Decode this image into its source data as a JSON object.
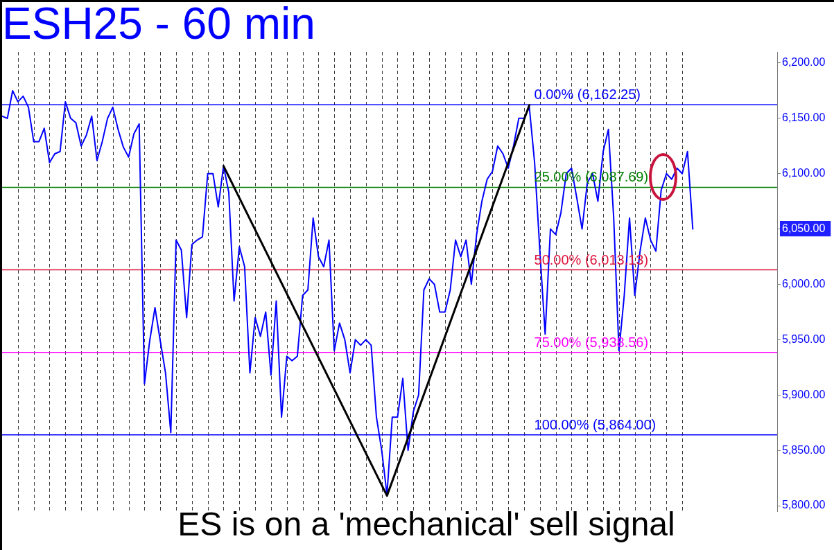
{
  "chart_data": {
    "type": "line",
    "title": "ESH25 - 60 min",
    "categories": [
      null,
      null,
      null,
      null,
      null,
      null,
      null,
      null,
      null,
      null,
      null,
      null,
      null,
      null,
      null,
      null,
      null,
      null,
      null,
      null,
      null,
      null,
      null,
      null,
      null,
      null,
      null,
      null,
      null,
      null,
      null,
      null,
      null,
      null,
      null,
      null,
      null,
      null,
      null,
      null,
      null,
      null,
      null,
      null,
      null,
      null,
      null,
      null,
      null,
      null,
      null,
      null,
      null,
      null,
      null,
      null,
      null,
      null,
      null,
      null,
      null,
      null,
      null,
      null,
      null,
      null,
      null,
      null,
      null,
      null,
      null,
      null,
      null,
      null,
      null,
      null,
      null,
      null,
      null,
      null,
      null,
      null,
      null,
      null,
      null,
      null,
      null,
      null,
      null,
      null,
      null,
      null,
      null,
      null,
      null,
      null,
      null,
      null,
      null,
      null,
      null,
      null,
      null,
      null,
      null,
      null,
      null,
      null,
      null,
      null,
      null,
      null,
      null,
      null,
      null,
      null,
      null,
      null,
      null,
      null,
      null,
      null,
      null,
      null,
      null,
      null,
      null,
      null,
      null,
      null,
      null,
      null,
      null,
      null,
      null,
      null,
      null,
      null,
      null,
      null,
      null,
      null,
      null,
      null,
      null,
      null,
      null,
      null
    ],
    "series": [
      {
        "color": "#0000ff",
        "values": [
          6152,
          6150,
          6175,
          6165,
          6170,
          6160,
          6129,
          6129,
          6141,
          6110,
          6118,
          6120,
          6165,
          6150,
          6146,
          6125,
          6135,
          6152,
          6112,
          6129,
          6150,
          6160,
          6140,
          6124,
          6115,
          6136,
          6145,
          5910,
          5949,
          5979,
          5949,
          5920,
          5866,
          6040,
          6031,
          5970,
          6036,
          6040,
          6043,
          6100,
          6100,
          6070,
          6107,
          6083,
          5985,
          6034,
          6016,
          5920,
          5970,
          5953,
          5975,
          5918,
          5985,
          5880,
          5935,
          5931,
          5935,
          5990,
          5995,
          6060,
          6025,
          6016,
          6040,
          5940,
          5965,
          5950,
          5920,
          5950,
          5945,
          5950,
          5945,
          5880,
          5850,
          5810,
          5880,
          5880,
          5915,
          5850,
          5885,
          5900,
          5995,
          6005,
          6000,
          5975,
          5975,
          5995,
          6040,
          6025,
          6040,
          6000,
          6045,
          6075,
          6095,
          6102,
          6125,
          6118,
          6105,
          6125,
          6150,
          6150,
          6160,
          6110,
          6030,
          5955,
          6050,
          6045,
          6065,
          6100,
          6105,
          6078,
          6050,
          6092,
          6100,
          6075,
          6120,
          6140,
          6060,
          5940,
          5990,
          6060,
          5990,
          6030,
          6060,
          6040,
          6030,
          6085,
          6100,
          6095,
          6105,
          6100,
          6120,
          6050,
          null,
          null,
          null,
          null,
          null,
          null,
          null,
          null,
          null,
          null,
          null,
          null,
          null,
          null,
          null,
          null
        ]
      },
      {
        "type": "line",
        "color": "#000000",
        "values": [
          null,
          null,
          null,
          null,
          null,
          null,
          null,
          null,
          null,
          null,
          null,
          null,
          null,
          null,
          null,
          null,
          null,
          null,
          null,
          null,
          null,
          null,
          null,
          null,
          null,
          null,
          null,
          null,
          null,
          null,
          null,
          null,
          null,
          null,
          null,
          null,
          null,
          null,
          null,
          null,
          null,
          null,
          6107,
          null,
          null,
          null,
          null,
          null,
          null,
          null,
          null,
          null,
          null,
          null,
          null,
          null,
          null,
          null,
          null,
          null,
          null,
          null,
          null,
          null,
          null,
          null,
          null,
          null,
          null,
          null,
          null,
          null,
          null,
          5809,
          null,
          null,
          null,
          null,
          null,
          null,
          null,
          null,
          null,
          null,
          null,
          null,
          null,
          null,
          null,
          null,
          null,
          null,
          null,
          null,
          null,
          null,
          null,
          null,
          null,
          null,
          6162,
          null,
          null,
          null,
          null,
          null,
          null,
          null,
          null,
          null,
          null,
          null,
          null,
          null,
          null,
          null,
          null,
          null,
          null,
          null,
          null,
          null,
          null,
          null,
          null,
          null,
          null,
          null,
          null,
          null,
          null,
          null,
          null,
          null,
          null,
          null,
          null,
          null,
          null,
          null,
          null,
          null,
          null,
          null,
          null,
          null,
          null,
          null
        ]
      }
    ],
    "ylim": [
      5795,
      6210
    ],
    "yticks": [
      {
        "value": 5800,
        "label": "5,800.00"
      },
      {
        "value": 5850,
        "label": "5,850.00"
      },
      {
        "value": 5900,
        "label": "5,900.00"
      },
      {
        "value": 5950,
        "label": "5,950.00"
      },
      {
        "value": 6000,
        "label": "6,000.00"
      },
      {
        "value": 6050,
        "label": "6,050.00"
      },
      {
        "value": 6100,
        "label": "6,100.00"
      },
      {
        "value": 6150,
        "label": "6,150.00"
      },
      {
        "value": 6200,
        "label": "6,200.00"
      }
    ],
    "grid": "x",
    "marker": "none",
    "ref_lines": [
      {
        "axis": "y",
        "value": 6162.25,
        "label": "0.00% (6,162.25)",
        "color": "#0000ff"
      },
      {
        "axis": "y",
        "value": 6087.69,
        "label": "25.00% (6,087.69)",
        "color": "#008000"
      },
      {
        "axis": "y",
        "value": 6013.13,
        "label": "50.00% (6,013.13)",
        "color": "#dc143c"
      },
      {
        "axis": "y",
        "value": 5938.56,
        "label": "75.00% (5,938.56)",
        "color": "#ff00ff"
      },
      {
        "axis": "y",
        "value": 5864.0,
        "label": "100.00% (5,864.00)",
        "color": "#0000ff"
      }
    ],
    "annotations": [
      "ES is on a 'mechanical' sell signal"
    ]
  }
}
